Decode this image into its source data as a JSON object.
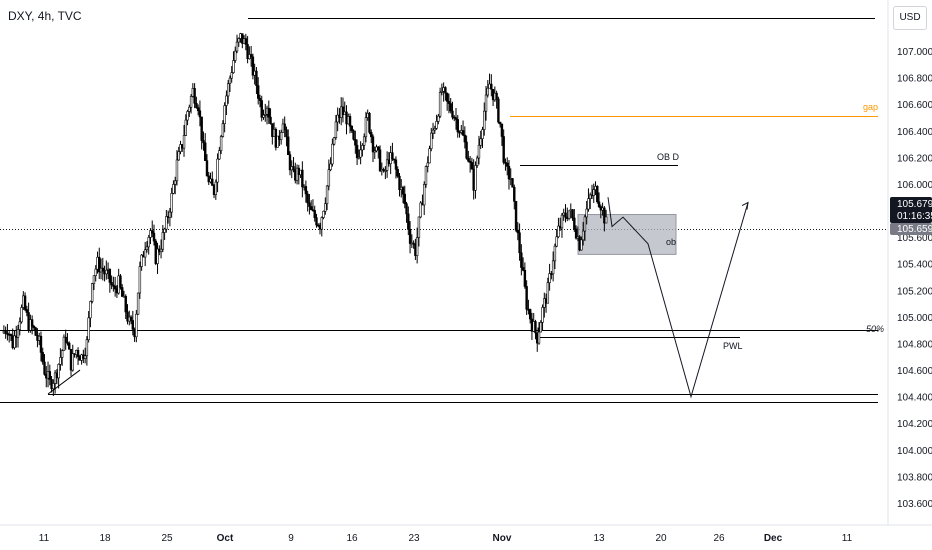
{
  "header": {
    "title": "DXY, 4h, TVC"
  },
  "price_scale": {
    "currency_label": "USD"
  },
  "price_labels": {
    "last_price": "105.679",
    "countdown": "01:16:35",
    "marker_price": "105.659"
  },
  "annotations": {
    "gap": "gap",
    "ob_d": "OB D",
    "ob": "ob",
    "pwl": "PWL",
    "fifty": "50%"
  },
  "colors": {
    "candle": "#000000",
    "gap_line": "#ff9800",
    "zone_fill": "#b2b5be",
    "last_price_bg": "#131722",
    "marker_bg": "#787b86"
  },
  "chart_data": {
    "type": "candlestick",
    "title": "DXY, 4h, TVC",
    "xlabel": "",
    "ylabel": "",
    "y_ticks": [
      "107.000",
      "106.800",
      "106.600",
      "106.400",
      "106.200",
      "106.000",
      "105.800",
      "105.600",
      "105.400",
      "105.200",
      "105.000",
      "104.800",
      "104.600",
      "104.400",
      "104.200",
      "104.000",
      "103.800",
      "103.600"
    ],
    "x_ticks": [
      {
        "label": "11",
        "bold": false
      },
      {
        "label": "18",
        "bold": false
      },
      {
        "label": "25",
        "bold": false
      },
      {
        "label": "Oct",
        "bold": true
      },
      {
        "label": "9",
        "bold": false
      },
      {
        "label": "16",
        "bold": false
      },
      {
        "label": "23",
        "bold": false
      },
      {
        "label": "Nov",
        "bold": true
      },
      {
        "label": "13",
        "bold": false
      },
      {
        "label": "20",
        "bold": false
      },
      {
        "label": "26",
        "bold": false
      },
      {
        "label": "Dec",
        "bold": true
      },
      {
        "label": "11",
        "bold": false
      }
    ],
    "ylim": [
      103.5,
      107.3
    ],
    "closes_path": [
      104.88,
      104.92,
      104.8,
      104.95,
      105.1,
      104.95,
      104.9,
      104.8,
      104.6,
      104.5,
      104.55,
      104.7,
      104.85,
      104.65,
      104.75,
      104.7,
      104.8,
      105.3,
      105.4,
      105.35,
      105.3,
      105.2,
      105.25,
      105.1,
      104.95,
      104.9,
      105.35,
      105.55,
      105.65,
      105.45,
      105.55,
      105.7,
      105.9,
      106.15,
      106.3,
      106.55,
      106.7,
      106.6,
      106.25,
      106.0,
      105.95,
      106.3,
      106.6,
      106.8,
      107.0,
      107.1,
      107.05,
      106.9,
      106.75,
      106.55,
      106.6,
      106.4,
      106.3,
      106.5,
      106.2,
      106.05,
      106.1,
      105.95,
      105.8,
      105.75,
      105.7,
      105.9,
      106.15,
      106.45,
      106.55,
      106.5,
      106.35,
      106.2,
      106.35,
      106.5,
      106.3,
      106.2,
      106.05,
      106.2,
      106.15,
      106.0,
      105.85,
      105.6,
      105.5,
      105.8,
      106.1,
      106.35,
      106.5,
      106.7,
      106.6,
      106.55,
      106.45,
      106.35,
      106.2,
      106.0,
      106.3,
      106.55,
      106.75,
      106.65,
      106.45,
      106.1,
      106.05,
      105.7,
      105.4,
      105.1,
      104.95,
      104.85,
      105.05,
      105.2,
      105.45,
      105.65,
      105.75,
      105.8,
      105.7,
      105.55,
      105.75,
      105.9,
      105.95,
      105.85,
      105.7
    ],
    "levels": [
      {
        "name": "top",
        "value": 107.25
      },
      {
        "name": "gap",
        "value": 106.51
      },
      {
        "name": "OB D",
        "value": 106.14
      },
      {
        "name": "50%",
        "value": 104.9
      },
      {
        "name": "PWL",
        "value": 104.85
      },
      {
        "name": "low-1",
        "value": 104.42
      },
      {
        "name": "low-2",
        "value": 104.36
      }
    ],
    "zone": {
      "name": "ob",
      "top": 105.77,
      "bottom": 105.47
    },
    "projection": [
      105.9,
      105.68,
      105.75,
      105.55,
      104.4,
      105.86
    ],
    "dotted_price": 105.659,
    "grid": false
  }
}
